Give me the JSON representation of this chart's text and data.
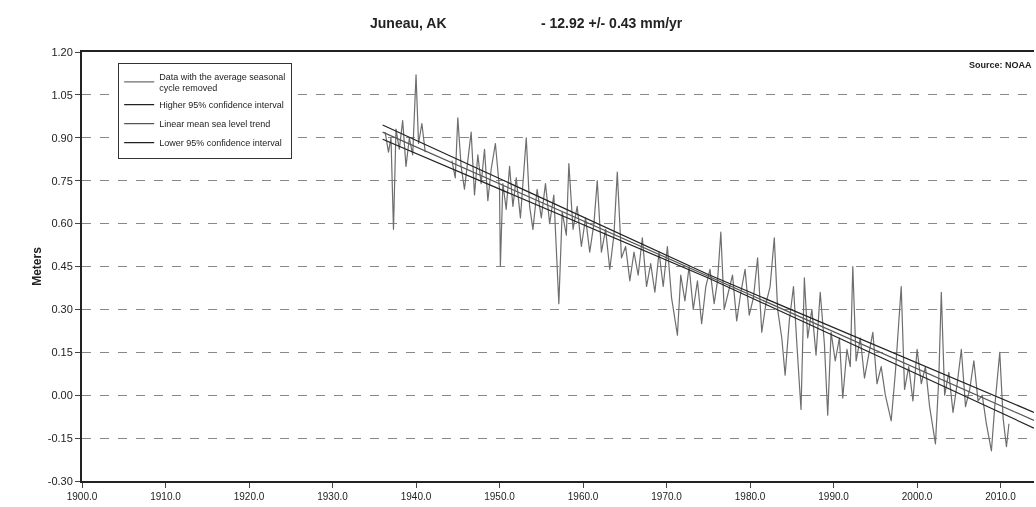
{
  "chart_data": {
    "type": "line",
    "title": "Juneau, AK",
    "subtitle": "- 12.92 +/- 0.43 mm/yr",
    "ylabel": "Meters",
    "annotations": [
      "Source: NOAA"
    ],
    "xlim": [
      1900,
      2014
    ],
    "ylim": [
      -0.3,
      1.2
    ],
    "xticks": [
      {
        "value": 1900,
        "label": "1900.0"
      },
      {
        "value": 1910,
        "label": "1910.0"
      },
      {
        "value": 1920,
        "label": "1920.0"
      },
      {
        "value": 1930,
        "label": "1930.0"
      },
      {
        "value": 1940,
        "label": "1940.0"
      },
      {
        "value": 1950,
        "label": "1950.0"
      },
      {
        "value": 1960,
        "label": "1960.0"
      },
      {
        "value": 1970,
        "label": "1970.0"
      },
      {
        "value": 1980,
        "label": "1980.0"
      },
      {
        "value": 1990,
        "label": "1990.0"
      },
      {
        "value": 2000,
        "label": "2000.0"
      },
      {
        "value": 2010,
        "label": "2010.0"
      }
    ],
    "yticks": [
      {
        "value": -0.3,
        "label": "-0.30"
      },
      {
        "value": -0.15,
        "label": "-0.15"
      },
      {
        "value": 0,
        "label": "0.00"
      },
      {
        "value": 0.15,
        "label": "0.15"
      },
      {
        "value": 0.3,
        "label": "0.30"
      },
      {
        "value": 0.45,
        "label": "0.45"
      },
      {
        "value": 0.6,
        "label": "0.60"
      },
      {
        "value": 0.75,
        "label": "0.75"
      },
      {
        "value": 0.9,
        "label": "0.90"
      },
      {
        "value": 1.05,
        "label": "1.05"
      },
      {
        "value": 1.2,
        "label": "1.20"
      }
    ],
    "grid": "y",
    "legend": "top left",
    "marker": "none",
    "line_style": "solid",
    "series": [
      {
        "name": "Data with the average seasonal\ncycle removed",
        "color": "#6e6e6e",
        "x": [
          1936.3,
          1936.7,
          1937.0,
          1937.3,
          1937.6,
          1938.0,
          1938.4,
          1938.8,
          1939.2,
          1939.6,
          1940.0,
          1940.3,
          1940.7,
          1941.1,
          1941.5,
          1944.3,
          1944.7,
          1945.0,
          1945.4,
          1945.8,
          1946.2,
          1946.6,
          1947.0,
          1947.4,
          1947.8,
          1948.2,
          1948.6,
          1949.0,
          1949.5,
          1950.0,
          1950.1,
          1950.4,
          1950.8,
          1951.2,
          1951.6,
          1952.0,
          1952.5,
          1953.2,
          1953.6,
          1954.0,
          1954.5,
          1955.0,
          1955.5,
          1956.0,
          1956.5,
          1957.1,
          1957.5,
          1958.0,
          1958.3,
          1958.8,
          1959.3,
          1959.8,
          1960.3,
          1960.8,
          1961.3,
          1961.7,
          1962.2,
          1962.7,
          1963.2,
          1963.7,
          1964.1,
          1964.6,
          1965.1,
          1965.6,
          1966.1,
          1966.6,
          1967.1,
          1967.6,
          1968.1,
          1968.6,
          1969.1,
          1969.6,
          1970.1,
          1970.6,
          1971.3,
          1971.7,
          1972.2,
          1972.7,
          1973.2,
          1973.7,
          1974.2,
          1974.7,
          1975.2,
          1975.7,
          1976.1,
          1976.5,
          1976.9,
          1977.4,
          1977.9,
          1978.4,
          1978.9,
          1979.4,
          1979.9,
          1980.4,
          1980.9,
          1981.4,
          1981.9,
          1982.4,
          1982.9,
          1983.3,
          1983.8,
          1984.2,
          1984.7,
          1985.2,
          1985.6,
          1986.1,
          1986.5,
          1986.9,
          1987.4,
          1987.9,
          1988.4,
          1988.9,
          1989.3,
          1989.7,
          1990.2,
          1990.7,
          1991.1,
          1991.6,
          1992.0,
          1992.3,
          1992.7,
          1993.2,
          1993.7,
          1994.2,
          1994.7,
          1995.2,
          1995.7,
          1996.2,
          1996.9,
          1997.4,
          1998.1,
          1998.5,
          1999.0,
          1999.5,
          2000.0,
          2000.5,
          2001.0,
          2001.5,
          2002.2,
          2002.6,
          2002.9,
          2003.3,
          2003.8,
          2004.3,
          2004.8,
          2005.3,
          2005.8,
          2006.3,
          2006.8,
          2007.3,
          2007.8,
          2008.3,
          2008.9,
          2009.3,
          2009.9,
          2010.3,
          2010.7,
          2011.0
        ],
        "values": [
          0.92,
          0.85,
          0.9,
          0.58,
          0.93,
          0.86,
          0.96,
          0.8,
          0.9,
          0.84,
          1.12,
          0.88,
          0.95,
          0.85,
          null,
          0.82,
          0.76,
          0.97,
          0.8,
          0.72,
          0.82,
          0.92,
          0.7,
          0.84,
          0.74,
          0.86,
          0.68,
          0.79,
          0.88,
          0.72,
          0.45,
          0.74,
          0.65,
          0.8,
          0.66,
          0.76,
          0.62,
          0.9,
          0.66,
          0.58,
          0.72,
          0.62,
          0.74,
          0.6,
          0.7,
          0.32,
          0.64,
          0.56,
          0.81,
          0.58,
          0.66,
          0.52,
          0.62,
          0.5,
          0.6,
          0.75,
          0.5,
          0.58,
          0.44,
          0.56,
          0.78,
          0.48,
          0.52,
          0.4,
          0.5,
          0.42,
          0.55,
          0.38,
          0.46,
          0.36,
          0.5,
          0.38,
          0.52,
          0.34,
          0.21,
          0.42,
          0.33,
          0.45,
          0.3,
          0.4,
          0.25,
          0.38,
          0.44,
          0.32,
          0.4,
          0.57,
          0.3,
          0.36,
          0.42,
          0.26,
          0.36,
          0.44,
          0.28,
          0.34,
          0.48,
          0.22,
          0.32,
          0.38,
          0.55,
          0.3,
          0.2,
          0.07,
          0.26,
          0.38,
          0.18,
          -0.05,
          0.41,
          0.2,
          0.3,
          0.14,
          0.36,
          0.18,
          -0.07,
          0.22,
          0.12,
          0.2,
          -0.01,
          0.16,
          0.1,
          0.45,
          0.12,
          0.2,
          0.06,
          0.14,
          0.22,
          0.04,
          0.1,
          0.0,
          -0.09,
          0.08,
          0.38,
          0.02,
          0.1,
          -0.02,
          0.16,
          0.04,
          0.1,
          -0.04,
          -0.17,
          0.06,
          0.36,
          0.0,
          0.08,
          -0.06,
          0.04,
          0.16,
          -0.04,
          0.02,
          0.12,
          -0.02,
          0.0,
          -0.1,
          -0.195,
          -0.04,
          0.15,
          -0.08,
          -0.18,
          -0.1
        ]
      },
      {
        "name": "Higher 95% confidence interval",
        "color": "#222222",
        "x": [
          1936,
          1975,
          2014
        ],
        "values": [
          0.945,
          0.422,
          -0.06
        ]
      },
      {
        "name": "Linear mean sea level trend",
        "color": "#555555",
        "x": [
          1936,
          1975,
          2014
        ],
        "values": [
          0.92,
          0.416,
          -0.088
        ]
      },
      {
        "name": "Lower 95% confidence interval",
        "color": "#222222",
        "x": [
          1936,
          1975,
          2014
        ],
        "values": [
          0.895,
          0.41,
          -0.115
        ]
      }
    ]
  }
}
